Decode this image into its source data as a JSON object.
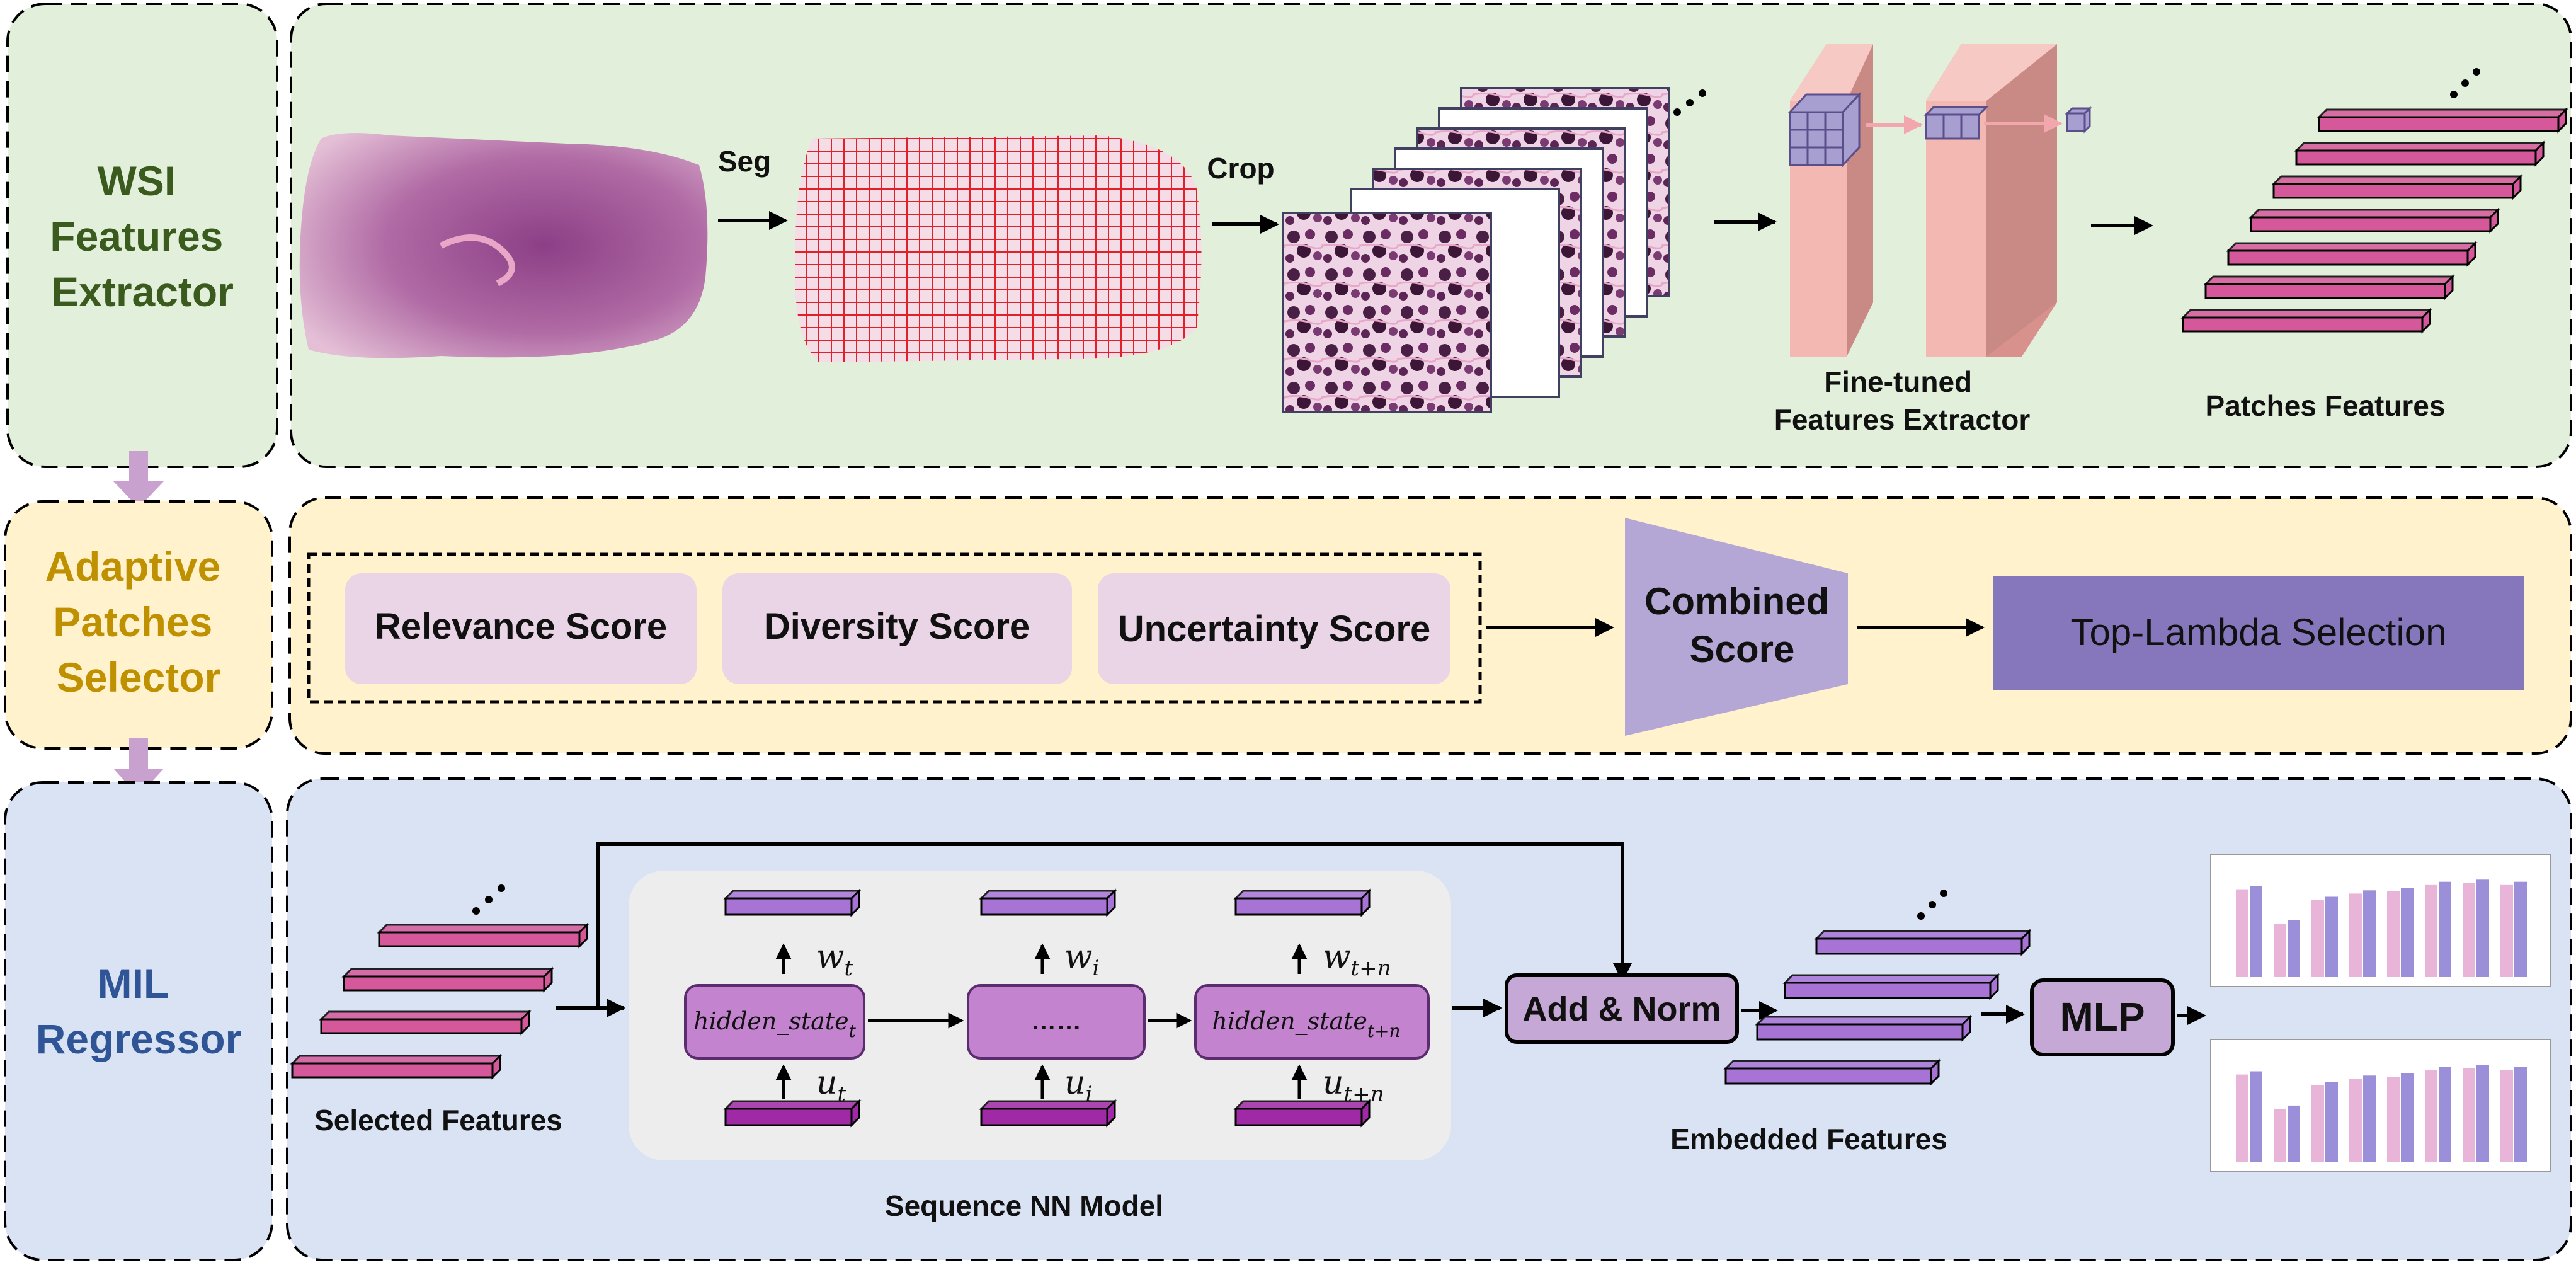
{
  "rows": {
    "wsi": {
      "label_lines": [
        "WSI",
        "Features",
        "Extractor"
      ],
      "seg": "Seg",
      "crop": "Crop",
      "extractor_lines": [
        "Fine-tuned",
        "Features Extractor"
      ],
      "patches_features": "Patches Features"
    },
    "selector": {
      "label_lines": [
        "Adaptive",
        "Patches",
        "Selector"
      ],
      "scores": [
        "Relevance Score",
        "Diversity Score",
        "Uncertainty Score"
      ],
      "combined_lines": [
        "Combined",
        "Score"
      ],
      "top_lambda": "Top-Lambda Selection"
    },
    "mil": {
      "label_lines": [
        "MIL",
        "Regressor"
      ],
      "selected_features": "Selected Features",
      "sequence_model": "Sequence NN Model",
      "hidden_t": "hidden_state",
      "hidden_t_sub": "t",
      "hidden_mid": "……",
      "hidden_tn": "hidden_state",
      "hidden_tn_sub": "t+n",
      "w_labels": [
        {
          "base": "w",
          "sub": "t"
        },
        {
          "base": "w",
          "sub": "i"
        },
        {
          "base": "w",
          "sub": "t+n"
        }
      ],
      "u_labels": [
        {
          "base": "u",
          "sub": "t"
        },
        {
          "base": "u",
          "sub": "i"
        },
        {
          "base": "u",
          "sub": "t+n"
        }
      ],
      "add_norm": "Add & Norm",
      "mlp": "MLP",
      "embedded_features": "Embedded Features"
    }
  },
  "colors": {
    "row1_bg": "#e2efda",
    "row2_bg": "#fff2cc",
    "row3_bg": "#dae3f3",
    "row1_text": "#3a5a1e",
    "row2_text": "#bf9000",
    "row3_text": "#2f5597",
    "pink_feature": "#d4589a",
    "violet_feature": "#a774d6",
    "hidden_box": "#c383cf",
    "score_box": "#ead5e6",
    "combined_box": "#b4a7d6",
    "top_lambda_box": "#8677bd",
    "add_norm_box": "#c6a8d6",
    "extractor_block": "#f4b8b3",
    "connector_arrow": "#c9a1cf"
  }
}
